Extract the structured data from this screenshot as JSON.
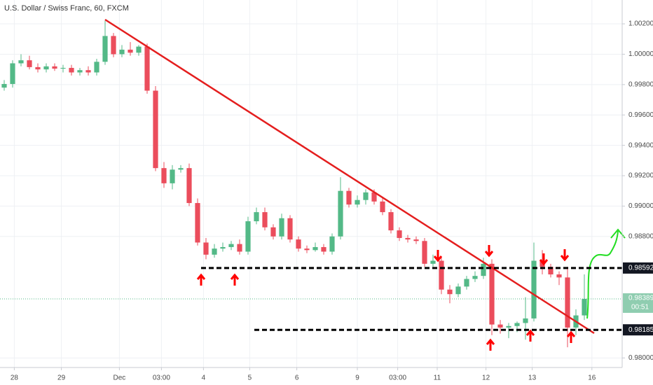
{
  "chart_data": {
    "type": "candlestick",
    "title": "U.S. Dollar / Swiss Franc, 60, FXCM",
    "x": [
      0,
      1,
      2,
      3,
      4,
      5,
      6,
      7,
      8,
      9,
      10,
      11,
      12,
      13,
      14,
      15,
      16,
      17,
      18,
      19,
      20,
      21,
      22,
      23,
      24,
      25,
      26,
      27,
      28,
      29,
      30,
      31,
      32,
      33,
      34,
      35,
      36,
      37,
      38,
      39,
      40,
      41,
      42,
      43,
      44,
      45,
      46,
      47,
      48,
      49,
      50,
      51,
      52,
      53,
      54,
      55,
      56,
      57,
      58,
      59,
      60,
      61,
      62,
      63,
      64,
      65,
      66,
      67,
      68,
      69
    ],
    "open": [
      0.9978,
      0.99804,
      0.9994,
      0.9996,
      0.99915,
      0.999,
      0.9992,
      0.99905,
      0.9991,
      0.9988,
      0.99895,
      0.9988,
      0.9995,
      1.0012,
      1.0,
      1.0003,
      1.0001,
      1.0005,
      0.9976,
      0.9925,
      0.9915,
      0.9924,
      0.9925,
      0.9902,
      0.9876,
      0.9868,
      0.9872,
      0.9873,
      0.9875,
      0.987,
      0.989,
      0.9896,
      0.9886,
      0.988,
      0.9892,
      0.9878,
      0.9872,
      0.9871,
      0.9873,
      0.987,
      0.988,
      0.991,
      0.9901,
      0.9904,
      0.9909,
      0.9903,
      0.9896,
      0.9884,
      0.9879,
      0.9878,
      0.9877,
      0.9862,
      0.9864,
      0.9845,
      0.9842,
      0.9847,
      0.9852,
      0.9854,
      0.9862,
      0.9822,
      0.982,
      0.9821,
      0.9823,
      0.9826,
      0.9864,
      0.986,
      0.9855,
      0.9853,
      0.982,
      0.9828
    ],
    "high": [
      0.9983,
      0.9996,
      1.0,
      0.9999,
      0.9994,
      0.9994,
      0.9994,
      0.9993,
      0.9993,
      0.9991,
      0.9992,
      0.9997,
      1.0022,
      1.0014,
      1.0006,
      1.0008,
      1.0006,
      1.0007,
      0.9979,
      0.9929,
      0.9927,
      0.9927,
      0.9928,
      0.9905,
      0.9879,
      0.9875,
      0.9876,
      0.9877,
      0.9878,
      0.9893,
      0.9899,
      0.9899,
      0.9888,
      0.9895,
      0.9894,
      0.988,
      0.9874,
      0.9876,
      0.9875,
      0.9882,
      0.9919,
      0.9912,
      0.9907,
      0.9911,
      0.9911,
      0.9905,
      0.9898,
      0.9886,
      0.9881,
      0.988,
      0.9879,
      0.9868,
      0.9866,
      0.9848,
      0.9849,
      0.9854,
      0.9857,
      0.9866,
      0.9865,
      0.9825,
      0.9823,
      0.9824,
      0.984,
      0.9876,
      0.9871,
      0.9862,
      0.9857,
      0.986,
      0.9832,
      0.9855
    ],
    "low": [
      0.9976,
      0.9978,
      0.9992,
      0.999,
      0.9988,
      0.9988,
      0.9989,
      0.9988,
      0.9986,
      0.9986,
      0.9986,
      0.9986,
      0.9993,
      0.9998,
      0.9998,
      0.9999,
      0.9999,
      0.9974,
      0.9923,
      0.9912,
      0.9911,
      0.9922,
      0.99,
      0.9874,
      0.9865,
      0.9866,
      0.987,
      0.9871,
      0.9868,
      0.9868,
      0.9888,
      0.9884,
      0.9878,
      0.9878,
      0.9876,
      0.987,
      0.9869,
      0.987,
      0.9868,
      0.9868,
      0.9878,
      0.9899,
      0.9899,
      0.9901,
      0.9901,
      0.9894,
      0.9882,
      0.9877,
      0.9876,
      0.9875,
      0.986,
      0.986,
      0.9842,
      0.9836,
      0.984,
      0.9845,
      0.985,
      0.9852,
      0.9815,
      0.9816,
      0.9813,
      0.9817,
      0.9812,
      0.9824,
      0.9855,
      0.9853,
      0.9848,
      0.9807,
      0.9815,
      0.9825
    ],
    "close": [
      0.99804,
      0.9994,
      0.9996,
      0.99915,
      0.999,
      0.9992,
      0.99905,
      0.9991,
      0.9988,
      0.99895,
      0.9988,
      0.9995,
      1.0012,
      1.0,
      1.0003,
      1.0001,
      1.0005,
      0.9976,
      0.9925,
      0.9915,
      0.9924,
      0.9925,
      0.9902,
      0.9876,
      0.9868,
      0.9872,
      0.9873,
      0.9875,
      0.987,
      0.989,
      0.9896,
      0.9886,
      0.988,
      0.9892,
      0.9878,
      0.9872,
      0.9871,
      0.9873,
      0.987,
      0.988,
      0.991,
      0.9901,
      0.9904,
      0.9909,
      0.9903,
      0.9896,
      0.9884,
      0.9879,
      0.9878,
      0.9877,
      0.9862,
      0.9864,
      0.9845,
      0.9842,
      0.9847,
      0.9852,
      0.9854,
      0.9862,
      0.9822,
      0.982,
      0.9821,
      0.9823,
      0.9826,
      0.9864,
      0.986,
      0.9855,
      0.9853,
      0.982,
      0.9828,
      0.98389
    ],
    "up_color": "#53b987",
    "down_color": "#eb4d5c",
    "xlim": [
      -0.5,
      73.5
    ],
    "xticks": [
      {
        "value": 1.2,
        "label": "28"
      },
      {
        "value": 6.8,
        "label": "29"
      },
      {
        "value": 13.7,
        "label": "Dec"
      },
      {
        "value": 18.7,
        "label": "03:00"
      },
      {
        "value": 23.7,
        "label": "4"
      },
      {
        "value": 29.2,
        "label": "5"
      },
      {
        "value": 34.8,
        "label": "6"
      },
      {
        "value": 42,
        "label": "9"
      },
      {
        "value": 46.8,
        "label": "03:00"
      },
      {
        "value": 51.5,
        "label": "11"
      },
      {
        "value": 57.3,
        "label": "12"
      },
      {
        "value": 62.8,
        "label": "13"
      },
      {
        "value": 69.9,
        "label": "16"
      }
    ],
    "ylim": [
      0.97937,
      1.00357
    ],
    "yticks": [
      {
        "value": 1.002,
        "label": "1.00200"
      },
      {
        "value": 1.0,
        "label": "1.00000"
      },
      {
        "value": 0.998,
        "label": "0.99800"
      },
      {
        "value": 0.996,
        "label": "0.99600"
      },
      {
        "value": 0.994,
        "label": "0.99400"
      },
      {
        "value": 0.992,
        "label": "0.99200"
      },
      {
        "value": 0.99,
        "label": "0.99000"
      },
      {
        "value": 0.988,
        "label": "0.98800"
      },
      {
        "value": 0.98,
        "label": "0.98000"
      }
    ],
    "grid": true,
    "levels": [
      0.98592,
      0.98185
    ],
    "last_price": 0.98389,
    "countdown": "00:51"
  }
}
